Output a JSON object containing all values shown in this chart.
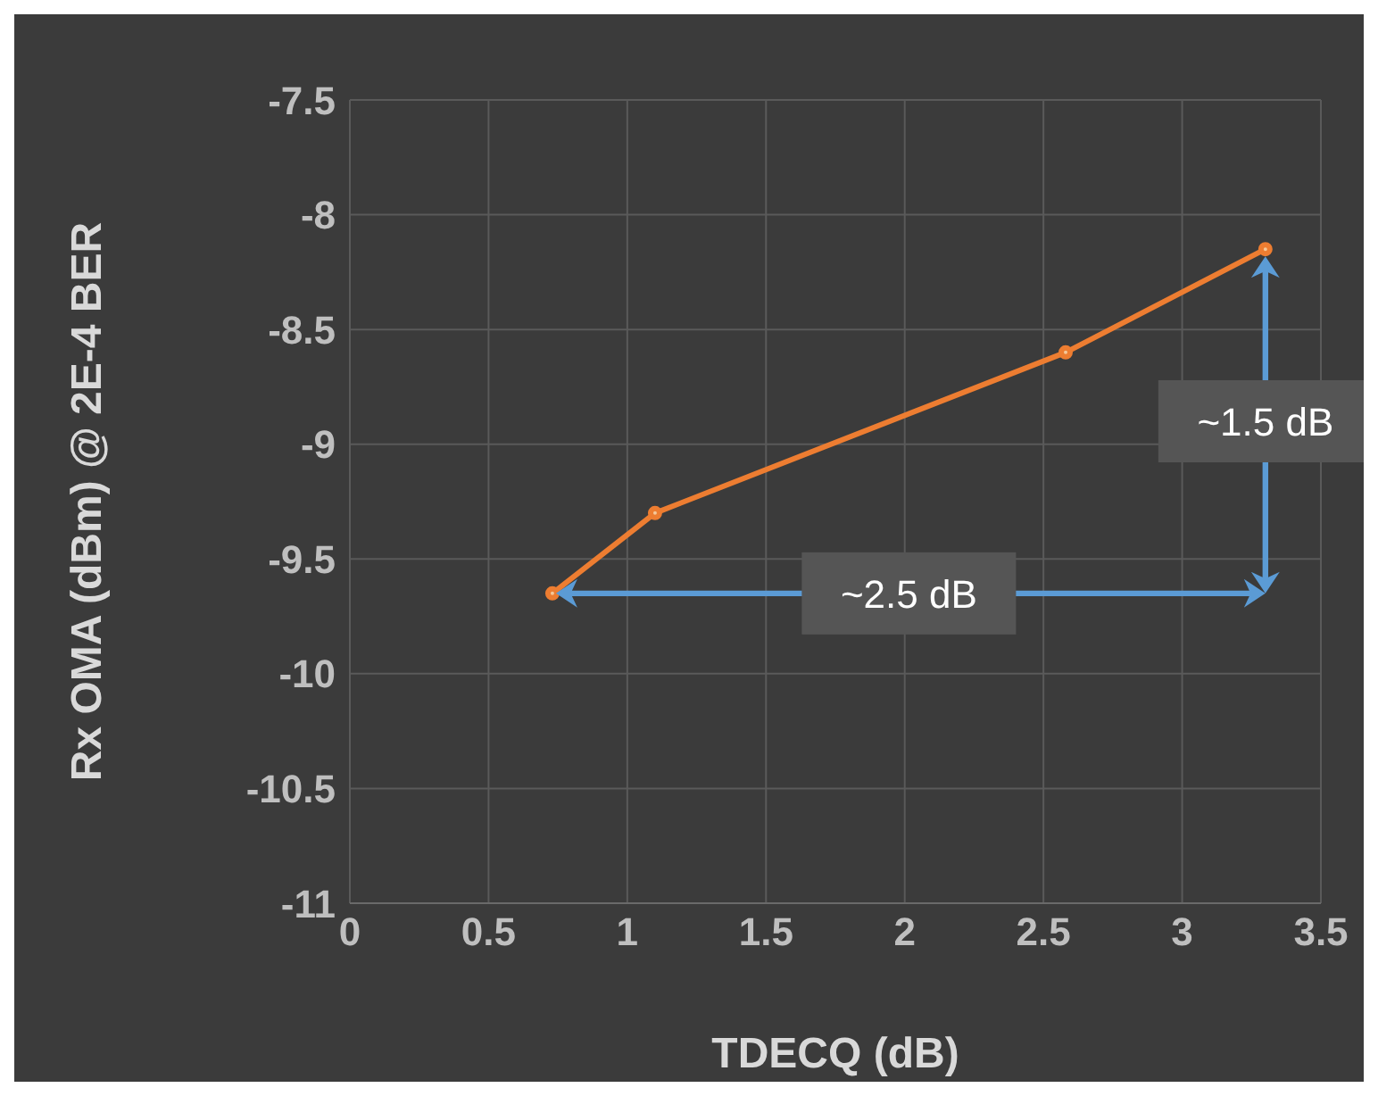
{
  "chart_data": {
    "type": "line",
    "xlabel": "TDECQ (dB)",
    "ylabel": "Rx OMA (dBm) @ 2E-4 BER",
    "x": [
      0.73,
      1.1,
      2.58,
      3.3
    ],
    "series": [
      {
        "color": "#ed7d31",
        "values": [
          -9.65,
          -9.3,
          -8.6,
          -8.15
        ]
      }
    ],
    "xlim": [
      0,
      3.5
    ],
    "xticks": [
      0,
      0.5,
      1,
      1.5,
      2,
      2.5,
      3,
      3.5
    ],
    "ylim": [
      -11,
      -7.5
    ],
    "yticks": [
      -11,
      -10.5,
      -10,
      -9.5,
      -9,
      -8.5,
      -8,
      -7.5
    ],
    "grid": true,
    "marker": "circle",
    "line_style": "solid",
    "annotations": [
      "~2.5 dB",
      "~1.5 dB"
    ]
  }
}
